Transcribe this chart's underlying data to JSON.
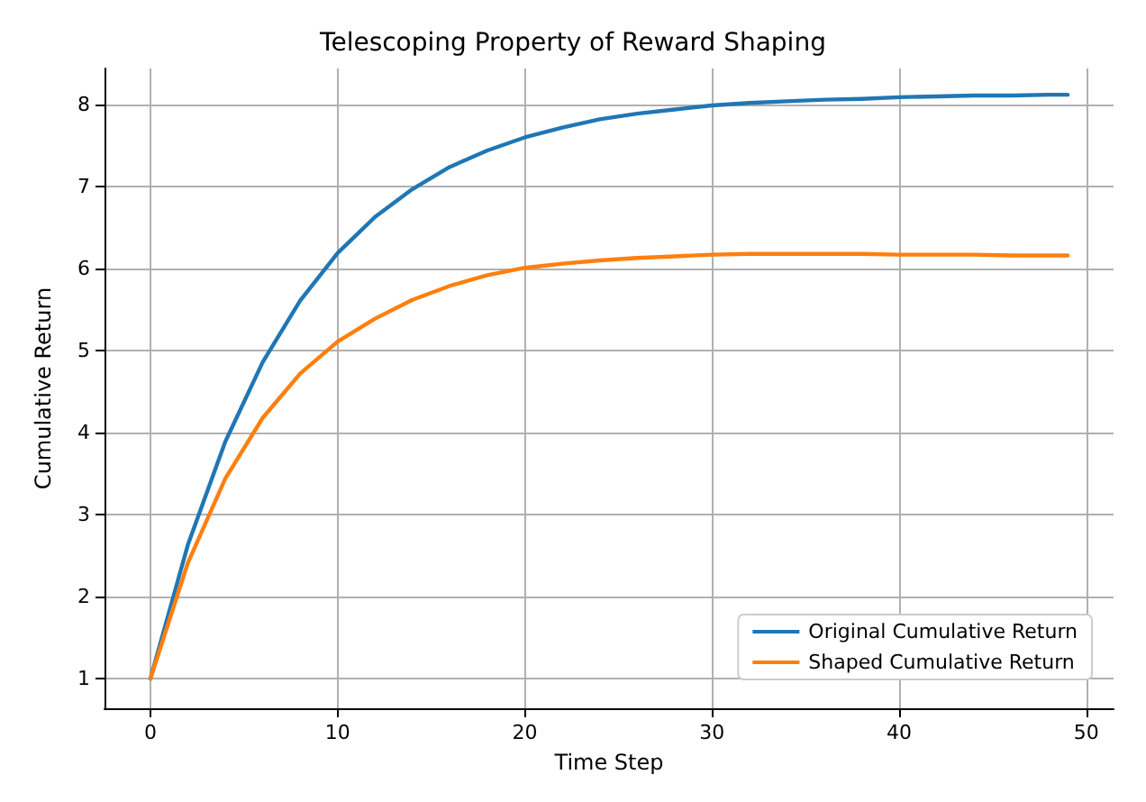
{
  "chart_data": {
    "type": "line",
    "title": "Telescoping Property of Reward Shaping",
    "xlabel": "Time Step",
    "ylabel": "Cumulative Return",
    "x": [
      0,
      2,
      4,
      6,
      8,
      10,
      12,
      14,
      16,
      18,
      20,
      22,
      24,
      26,
      28,
      30,
      32,
      34,
      36,
      38,
      40,
      42,
      44,
      46,
      48,
      49
    ],
    "series": [
      {
        "name": "Original Cumulative Return",
        "color": "#1f77b4",
        "values": [
          1,
          2.63,
          3.89,
          4.86,
          5.61,
          6.19,
          6.63,
          6.97,
          7.24,
          7.44,
          7.6,
          7.72,
          7.82,
          7.89,
          7.94,
          7.99,
          8.02,
          8.04,
          8.06,
          8.07,
          8.09,
          8.1,
          8.11,
          8.11,
          8.12,
          8.12
        ]
      },
      {
        "name": "Shaped Cumulative Return",
        "color": "#ff7f0e",
        "values": [
          1,
          2.41,
          3.44,
          4.18,
          4.72,
          5.11,
          5.39,
          5.62,
          5.79,
          5.92,
          6.01,
          6.06,
          6.1,
          6.13,
          6.15,
          6.17,
          6.18,
          6.18,
          6.18,
          6.18,
          6.17,
          6.17,
          6.17,
          6.16,
          6.16,
          6.16
        ]
      }
    ],
    "xlim": [
      -2.45,
      51.45
    ],
    "ylim": [
      0.64,
      8.44
    ],
    "xticks": [
      0,
      10,
      20,
      30,
      40,
      50
    ],
    "yticks": [
      1,
      2,
      3,
      4,
      5,
      6,
      7,
      8
    ],
    "grid": true,
    "legend": "bottom right",
    "marker": "none",
    "line_style": "solid"
  }
}
